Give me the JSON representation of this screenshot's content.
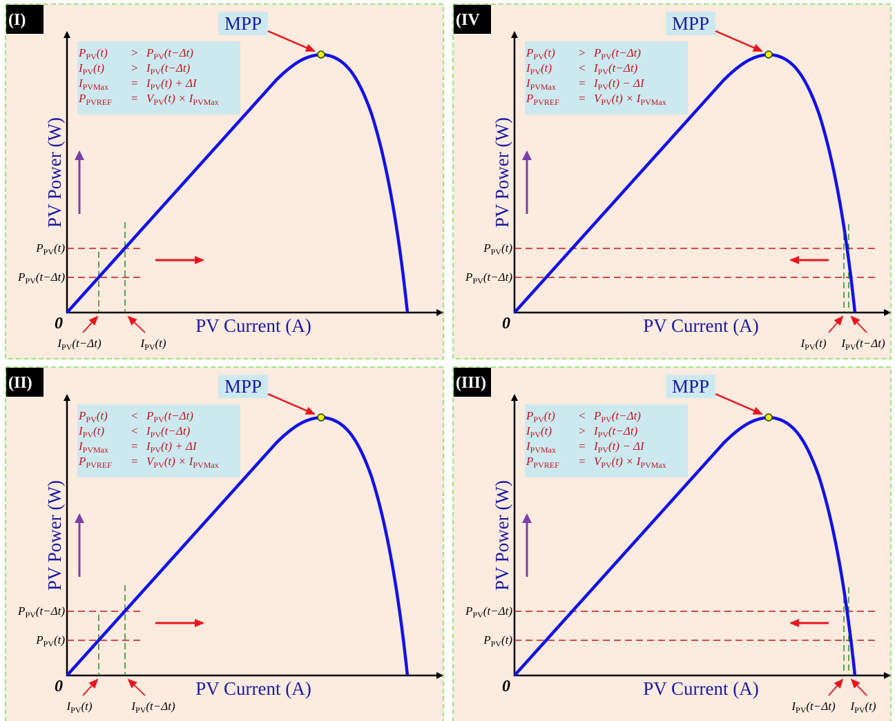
{
  "panels": [
    {
      "label": "(I)",
      "mpp": "MPP",
      "y_axis_label": "PV Power (W)",
      "x_axis_label": "PV Current (A)",
      "origin": "0",
      "equations": [
        {
          "lhs": [
            "P",
            "PV",
            "(t)"
          ],
          "op": ">",
          "rhs": [
            "P",
            "PV",
            "(t−Δt)"
          ]
        },
        {
          "lhs": [
            "I",
            "PV",
            "(t)"
          ],
          "op": ">",
          "rhs": [
            "I",
            "PV",
            "(t−Δt)"
          ]
        },
        {
          "lhs": [
            "I",
            "PVMax"
          ],
          "op": "=",
          "rhs": [
            "I",
            "PV",
            "(t) + ΔI"
          ]
        },
        {
          "lhs": [
            "P",
            "PVREF"
          ],
          "op": "=",
          "rhs": [
            "V",
            "PV",
            "(t) × I",
            "PVMax"
          ]
        }
      ],
      "power_labels": [
        [
          "P",
          "PV",
          "(t)"
        ],
        [
          "P",
          "PV",
          "(t−Δt)"
        ]
      ],
      "current_labels": [
        [
          "I",
          "PV",
          "(t−Δt)"
        ],
        [
          "I",
          "PV",
          "(t)"
        ]
      ]
    },
    {
      "label": "(IV",
      "mpp": "MPP",
      "y_axis_label": "PV Power (W)",
      "x_axis_label": "PV Current (A)",
      "origin": "0",
      "equations": [
        {
          "lhs": [
            "P",
            "PV",
            "(t)"
          ],
          "op": ">",
          "rhs": [
            "P",
            "PV",
            "(t−Δt)"
          ]
        },
        {
          "lhs": [
            "I",
            "PV",
            "(t)"
          ],
          "op": "<",
          "rhs": [
            "I",
            "PV",
            "(t−Δt)"
          ]
        },
        {
          "lhs": [
            "I",
            "PVMax"
          ],
          "op": "=",
          "rhs": [
            "I",
            "PV",
            "(t) − ΔI"
          ]
        },
        {
          "lhs": [
            "P",
            "PVREF"
          ],
          "op": "=",
          "rhs": [
            "V",
            "PV",
            "(t) × I",
            "PVMax"
          ]
        }
      ],
      "power_labels": [
        [
          "P",
          "PV",
          "(t)"
        ],
        [
          "P",
          "PV",
          "(t−Δt)"
        ]
      ],
      "current_labels": [
        [
          "I",
          "PV",
          "(t)"
        ],
        [
          "I",
          "PV",
          "(t−Δt)"
        ]
      ]
    },
    {
      "label": "(II)",
      "mpp": "MPP",
      "y_axis_label": "PV Power (W)",
      "x_axis_label": "PV Current (A)",
      "origin": "0",
      "equations": [
        {
          "lhs": [
            "P",
            "PV",
            "(t)"
          ],
          "op": "<",
          "rhs": [
            "P",
            "PV",
            "(t−Δt)"
          ]
        },
        {
          "lhs": [
            "I",
            "PV",
            "(t)"
          ],
          "op": "<",
          "rhs": [
            "I",
            "PV",
            "(t−Δt)"
          ]
        },
        {
          "lhs": [
            "I",
            "PVMax"
          ],
          "op": "=",
          "rhs": [
            "I",
            "PV",
            "(t) + ΔI"
          ]
        },
        {
          "lhs": [
            "P",
            "PVREF"
          ],
          "op": "=",
          "rhs": [
            "V",
            "PV",
            "(t) × I",
            "PVMax"
          ]
        }
      ],
      "power_labels": [
        [
          "P",
          "PV",
          "(t−Δt)"
        ],
        [
          "P",
          "PV",
          "(t)"
        ]
      ],
      "current_labels": [
        [
          "I",
          "PV",
          "(t)"
        ],
        [
          "I",
          "PV",
          "(t−Δt)"
        ]
      ]
    },
    {
      "label": "(III)",
      "mpp": "MPP",
      "y_axis_label": "PV Power (W)",
      "x_axis_label": "PV Current (A)",
      "origin": "0",
      "equations": [
        {
          "lhs": [
            "P",
            "PV",
            "(t)"
          ],
          "op": "<",
          "rhs": [
            "P",
            "PV",
            "(t−Δt)"
          ]
        },
        {
          "lhs": [
            "I",
            "PV",
            "(t)"
          ],
          "op": ">",
          "rhs": [
            "I",
            "PV",
            "(t−Δt)"
          ]
        },
        {
          "lhs": [
            "I",
            "PVMax"
          ],
          "op": "=",
          "rhs": [
            "I",
            "PV",
            "(t) − ΔI"
          ]
        },
        {
          "lhs": [
            "P",
            "PVREF"
          ],
          "op": "=",
          "rhs": [
            "V",
            "PV",
            "(t) × I",
            "PVMax"
          ]
        }
      ],
      "power_labels": [
        [
          "P",
          "PV",
          "(t−Δt)"
        ],
        [
          "P",
          "PV",
          "(t)"
        ]
      ],
      "current_labels": [
        [
          "I",
          "PV",
          "(t−Δt)"
        ],
        [
          "I",
          "PV",
          "(t)"
        ]
      ]
    }
  ]
}
